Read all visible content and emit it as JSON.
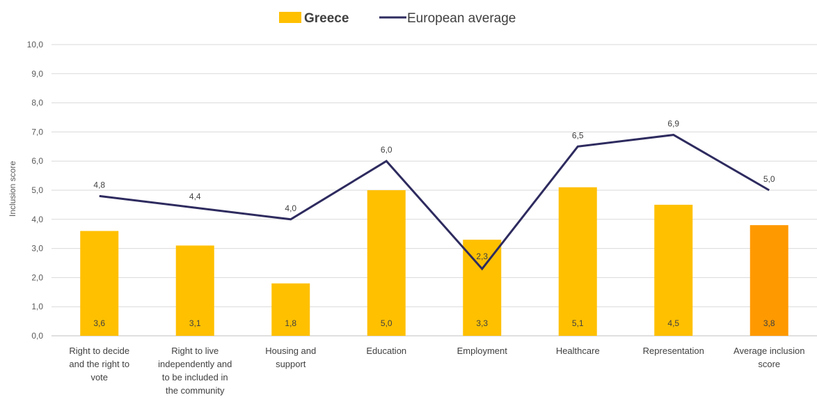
{
  "chart_data": {
    "type": "bar",
    "ylabel": "Inclusion score",
    "ylim": [
      0,
      10
    ],
    "yticks": [
      "0,0",
      "1,0",
      "2,0",
      "3,0",
      "4,0",
      "5,0",
      "6,0",
      "7,0",
      "8,0",
      "9,0",
      "10,0"
    ],
    "grid": true,
    "legend_position": "top-center",
    "categories": [
      [
        "Right to decide",
        "and the right to",
        "vote"
      ],
      [
        "Right to live",
        "independently and",
        "to be included in",
        "the community"
      ],
      [
        "Housing and",
        "support"
      ],
      [
        "Education"
      ],
      [
        "Employment"
      ],
      [
        "Healthcare"
      ],
      [
        "Representation"
      ],
      [
        "Average inclusion",
        "score"
      ]
    ],
    "series": [
      {
        "name": "Greece",
        "type": "bar",
        "values": [
          3.6,
          3.1,
          1.8,
          5.0,
          3.3,
          5.1,
          4.5,
          3.8
        ],
        "labels": [
          "3,6",
          "3,1",
          "1,8",
          "5,0",
          "3,3",
          "5,1",
          "4,5",
          "3,8"
        ],
        "color": "#FFC000",
        "highlight_color": "#FF9900",
        "highlight_index": 7
      },
      {
        "name": "European average",
        "type": "line",
        "values": [
          4.8,
          4.4,
          4.0,
          6.0,
          2.3,
          6.5,
          6.9,
          5.0
        ],
        "labels": [
          "4,8",
          "4,4",
          "4,0",
          "6,0",
          "2,3",
          "6,5",
          "6,9",
          "5,0"
        ],
        "color": "#2E2B5F"
      }
    ]
  }
}
